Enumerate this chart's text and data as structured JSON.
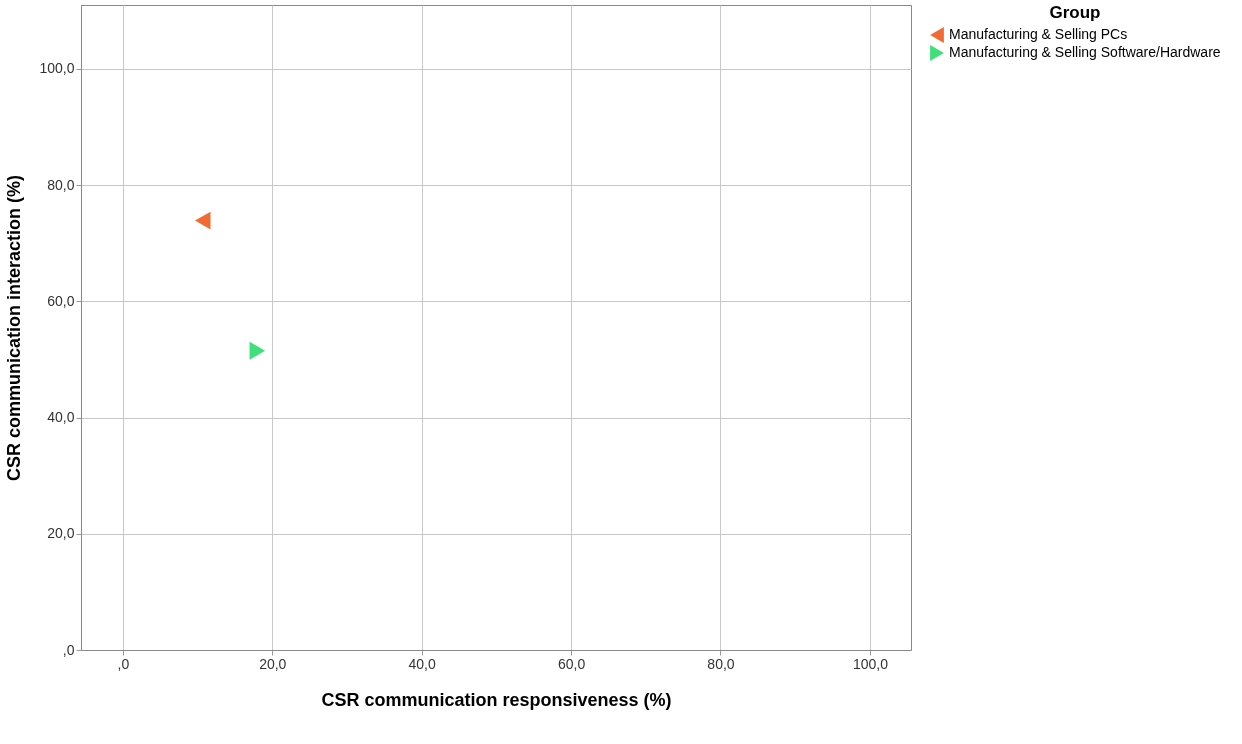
{
  "chart_data": {
    "type": "scatter",
    "xlabel": "CSR communication responsiveness (%)",
    "ylabel": "CSR communication interaction (%)",
    "legend_title": "Group",
    "legend": "top right",
    "grid": true,
    "xlim": [
      -5.6,
      105.5
    ],
    "ylim": [
      0,
      111
    ],
    "xticks": [
      {
        "value": 0,
        "label": ",0"
      },
      {
        "value": 20,
        "label": "20,0"
      },
      {
        "value": 40,
        "label": "40,0"
      },
      {
        "value": 60,
        "label": "60,0"
      },
      {
        "value": 80,
        "label": "80,0"
      },
      {
        "value": 100,
        "label": "100,0"
      }
    ],
    "yticks": [
      {
        "value": 0,
        "label": ",0"
      },
      {
        "value": 20,
        "label": "20,0"
      },
      {
        "value": 40,
        "label": "40,0"
      },
      {
        "value": 60,
        "label": "60,0"
      },
      {
        "value": 80,
        "label": "80,0"
      },
      {
        "value": 100,
        "label": "100,0"
      }
    ],
    "series": [
      {
        "name": "Manufacturing & Selling PCs",
        "color": "#f26b35",
        "marker": "triangle-left",
        "x": [
          10.7
        ],
        "values": [
          73.9
        ]
      },
      {
        "name": "Manufacturing & Selling Software/Hardware",
        "color": "#3de07a",
        "marker": "triangle-right",
        "x": [
          18.0
        ],
        "values": [
          51.5
        ]
      }
    ]
  }
}
